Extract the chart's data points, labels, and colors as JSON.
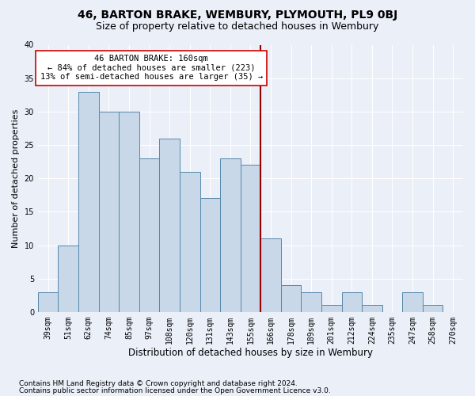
{
  "title1": "46, BARTON BRAKE, WEMBURY, PLYMOUTH, PL9 0BJ",
  "title2": "Size of property relative to detached houses in Wembury",
  "xlabel": "Distribution of detached houses by size in Wembury",
  "ylabel": "Number of detached properties",
  "categories": [
    "39sqm",
    "51sqm",
    "62sqm",
    "74sqm",
    "85sqm",
    "97sqm",
    "108sqm",
    "120sqm",
    "131sqm",
    "143sqm",
    "155sqm",
    "166sqm",
    "178sqm",
    "189sqm",
    "201sqm",
    "212sqm",
    "224sqm",
    "235sqm",
    "247sqm",
    "258sqm",
    "270sqm"
  ],
  "values": [
    3,
    10,
    33,
    30,
    30,
    23,
    26,
    21,
    17,
    23,
    22,
    11,
    4,
    3,
    1,
    3,
    1,
    0,
    3,
    1,
    0
  ],
  "bar_color": "#c8d8e8",
  "bar_edge_color": "#5588aa",
  "vline_x": 10.5,
  "vline_color": "#990000",
  "ylim": [
    0,
    40
  ],
  "yticks": [
    0,
    5,
    10,
    15,
    20,
    25,
    30,
    35,
    40
  ],
  "annotation_line1": "46 BARTON BRAKE: 160sqm",
  "annotation_line2": "← 84% of detached houses are smaller (223)",
  "annotation_line3": "13% of semi-detached houses are larger (35) →",
  "footnote1": "Contains HM Land Registry data © Crown copyright and database right 2024.",
  "footnote2": "Contains public sector information licensed under the Open Government Licence v3.0.",
  "bg_color": "#eaeff8",
  "title1_fontsize": 10,
  "title2_fontsize": 9,
  "ylabel_fontsize": 8,
  "xlabel_fontsize": 8.5,
  "tick_fontsize": 7,
  "annotation_fontsize": 7.5,
  "footnote_fontsize": 6.5
}
